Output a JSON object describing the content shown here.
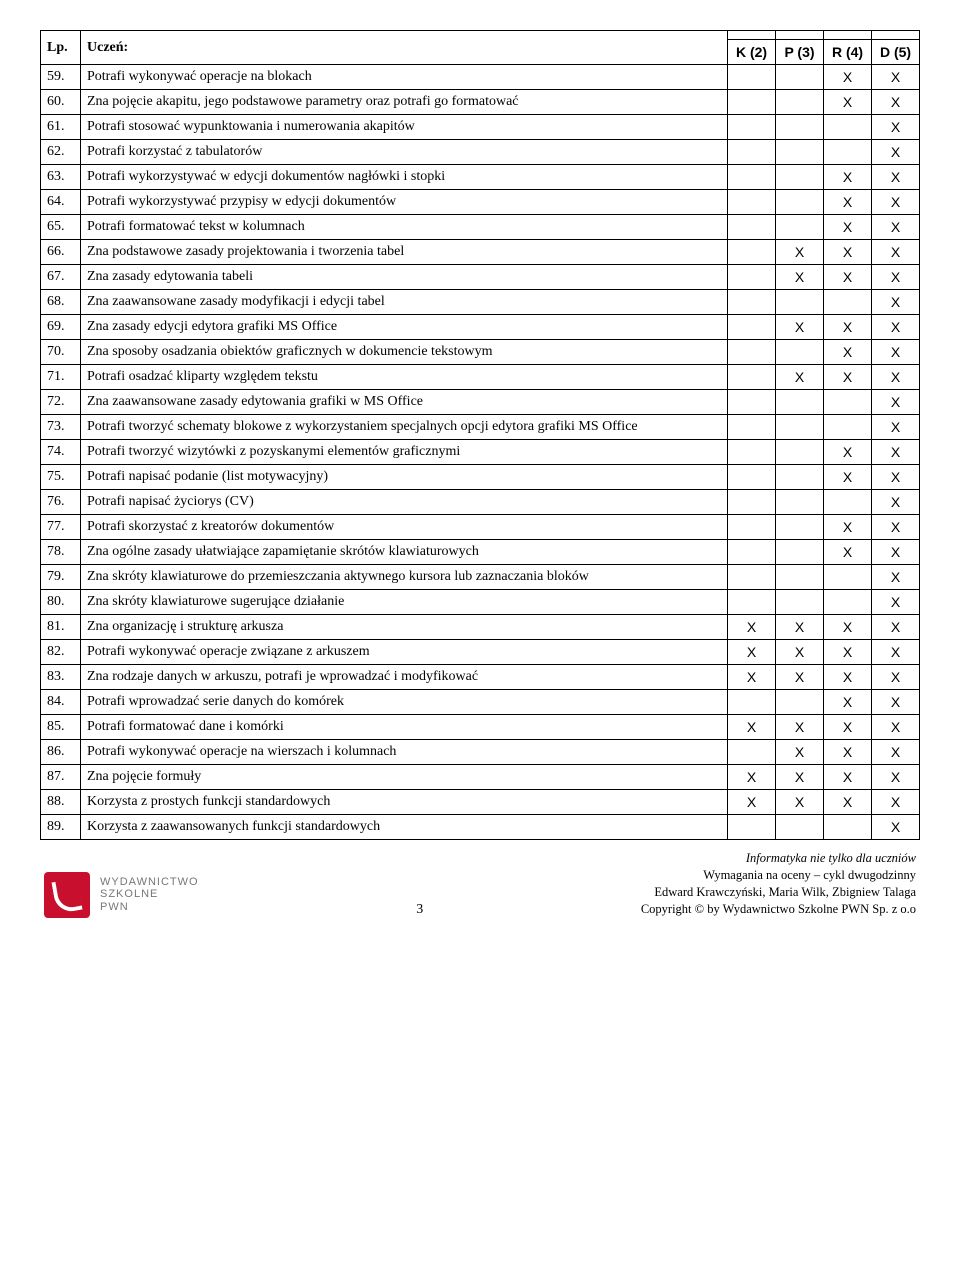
{
  "header": {
    "lp": "Lp.",
    "uczen": "Uczeń:",
    "cols": [
      "K (2)",
      "P (3)",
      "R (4)",
      "D (5)"
    ]
  },
  "mark": "X",
  "rows": [
    {
      "n": "59.",
      "t": "Potrafi wykonywać operacje na blokach",
      "m": [
        0,
        0,
        1,
        1
      ]
    },
    {
      "n": "60.",
      "t": "Zna pojęcie akapitu, jego podstawowe parametry oraz potrafi go formatować",
      "m": [
        0,
        0,
        1,
        1
      ]
    },
    {
      "n": "61.",
      "t": "Potrafi stosować wypunktowania i numerowania akapitów",
      "m": [
        0,
        0,
        0,
        1
      ]
    },
    {
      "n": "62.",
      "t": "Potrafi korzystać z tabulatorów",
      "m": [
        0,
        0,
        0,
        1
      ]
    },
    {
      "n": "63.",
      "t": "Potrafi wykorzystywać w edycji dokumentów nagłówki i stopki",
      "m": [
        0,
        0,
        1,
        1
      ]
    },
    {
      "n": "64.",
      "t": "Potrafi wykorzystywać przypisy w edycji dokumentów",
      "m": [
        0,
        0,
        1,
        1
      ]
    },
    {
      "n": "65.",
      "t": "Potrafi formatować tekst w kolumnach",
      "m": [
        0,
        0,
        1,
        1
      ]
    },
    {
      "n": "66.",
      "t": "Zna podstawowe zasady projektowania i tworzenia tabel",
      "m": [
        0,
        1,
        1,
        1
      ]
    },
    {
      "n": "67.",
      "t": "Zna zasady edytowania tabeli",
      "m": [
        0,
        1,
        1,
        1
      ]
    },
    {
      "n": "68.",
      "t": "Zna zaawansowane zasady modyfikacji i edycji tabel",
      "m": [
        0,
        0,
        0,
        1
      ]
    },
    {
      "n": "69.",
      "t": "Zna zasady edycji edytora grafiki MS Office",
      "m": [
        0,
        1,
        1,
        1
      ]
    },
    {
      "n": "70.",
      "t": "Zna sposoby osadzania obiektów graficznych w dokumencie tekstowym",
      "m": [
        0,
        0,
        1,
        1
      ]
    },
    {
      "n": "71.",
      "t": "Potrafi osadzać kliparty względem tekstu",
      "m": [
        0,
        1,
        1,
        1
      ]
    },
    {
      "n": "72.",
      "t": "Zna zaawansowane zasady edytowania grafiki w MS Office",
      "m": [
        0,
        0,
        0,
        1
      ]
    },
    {
      "n": "73.",
      "t": "Potrafi tworzyć schematy blokowe z wykorzystaniem specjalnych opcji edytora grafiki MS Office",
      "m": [
        0,
        0,
        0,
        1
      ]
    },
    {
      "n": "74.",
      "t": "Potrafi tworzyć wizytówki z pozyskanymi elementów graficznymi",
      "m": [
        0,
        0,
        1,
        1
      ]
    },
    {
      "n": "75.",
      "t": "Potrafi napisać podanie (list motywacyjny)",
      "m": [
        0,
        0,
        1,
        1
      ]
    },
    {
      "n": "76.",
      "t": "Potrafi napisać życiorys (CV)",
      "m": [
        0,
        0,
        0,
        1
      ]
    },
    {
      "n": "77.",
      "t": "Potrafi skorzystać z kreatorów dokumentów",
      "m": [
        0,
        0,
        1,
        1
      ]
    },
    {
      "n": "78.",
      "t": "Zna ogólne zasady ułatwiające zapamiętanie skrótów klawiaturowych",
      "m": [
        0,
        0,
        1,
        1
      ]
    },
    {
      "n": "79.",
      "t": "Zna skróty klawiaturowe do przemieszczania aktywnego kursora lub zaznaczania bloków",
      "m": [
        0,
        0,
        0,
        1
      ]
    },
    {
      "n": "80.",
      "t": "Zna skróty klawiaturowe sugerujące działanie",
      "m": [
        0,
        0,
        0,
        1
      ]
    },
    {
      "n": "81.",
      "t": "Zna organizację i strukturę arkusza",
      "m": [
        1,
        1,
        1,
        1
      ]
    },
    {
      "n": "82.",
      "t": "Potrafi wykonywać operacje związane z arkuszem",
      "m": [
        1,
        1,
        1,
        1
      ]
    },
    {
      "n": "83.",
      "t": "Zna rodzaje danych w arkuszu, potrafi je wprowadzać i modyfikować",
      "m": [
        1,
        1,
        1,
        1
      ]
    },
    {
      "n": "84.",
      "t": "Potrafi wprowadzać serie danych do komórek",
      "m": [
        0,
        0,
        1,
        1
      ]
    },
    {
      "n": "85.",
      "t": "Potrafi formatować dane i komórki",
      "m": [
        1,
        1,
        1,
        1
      ]
    },
    {
      "n": "86.",
      "t": "Potrafi wykonywać operacje na wierszach i kolumnach",
      "m": [
        0,
        1,
        1,
        1
      ]
    },
    {
      "n": "87.",
      "t": "Zna pojęcie formuły",
      "m": [
        1,
        1,
        1,
        1
      ]
    },
    {
      "n": "88.",
      "t": "Korzysta z prostych funkcji standardowych",
      "m": [
        1,
        1,
        1,
        1
      ]
    },
    {
      "n": "89.",
      "t": "Korzysta z zaawansowanych funkcji standardowych",
      "m": [
        0,
        0,
        0,
        1
      ]
    }
  ],
  "footer": {
    "logo": {
      "l1": "WYDAWNICTWO",
      "l2": "SZKOLNE",
      "l3": "PWN"
    },
    "page": "3",
    "credits": {
      "l1": "Informatyka nie tylko dla uczniów",
      "l2": "Wymagania na oceny – cykl dwugodzinny",
      "l3": "Edward Krawczyński, Maria Wilk, Zbigniew Talaga",
      "l4": "Copyright © by Wydawnictwo Szkolne PWN Sp. z o.o"
    }
  }
}
